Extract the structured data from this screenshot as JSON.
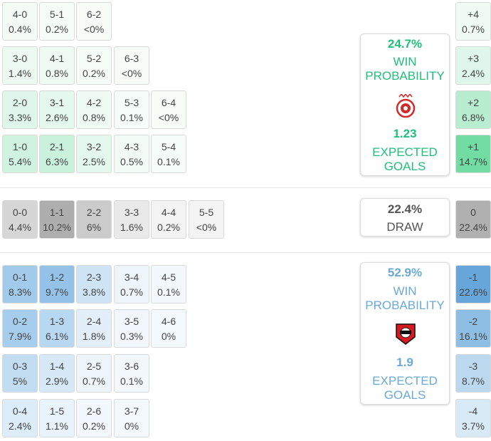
{
  "colors": {
    "home_accent": "#1fbf7a",
    "away_accent": "#6aa9d6",
    "draw_text": "#555555"
  },
  "home_rows": [
    [
      {
        "score": "4-0",
        "pct": "0.4%"
      },
      {
        "score": "5-1",
        "pct": "0.2%"
      },
      {
        "score": "6-2",
        "pct": "<0%"
      }
    ],
    [
      {
        "score": "3-0",
        "pct": "1.4%"
      },
      {
        "score": "4-1",
        "pct": "0.8%"
      },
      {
        "score": "5-2",
        "pct": "0.2%"
      },
      {
        "score": "6-3",
        "pct": "<0%"
      }
    ],
    [
      {
        "score": "2-0",
        "pct": "3.3%"
      },
      {
        "score": "3-1",
        "pct": "2.6%"
      },
      {
        "score": "4-2",
        "pct": "0.8%"
      },
      {
        "score": "5-3",
        "pct": "0.1%"
      },
      {
        "score": "6-4",
        "pct": "<0%"
      }
    ],
    [
      {
        "score": "1-0",
        "pct": "5.4%"
      },
      {
        "score": "2-1",
        "pct": "6.3%"
      },
      {
        "score": "3-2",
        "pct": "2.5%"
      },
      {
        "score": "4-3",
        "pct": "0.5%"
      },
      {
        "score": "5-4",
        "pct": "0.1%"
      }
    ]
  ],
  "draw_row": [
    {
      "score": "0-0",
      "pct": "4.4%"
    },
    {
      "score": "1-1",
      "pct": "10.2%"
    },
    {
      "score": "2-2",
      "pct": "6%"
    },
    {
      "score": "3-3",
      "pct": "1.6%"
    },
    {
      "score": "4-4",
      "pct": "0.2%"
    },
    {
      "score": "5-5",
      "pct": "<0%"
    }
  ],
  "away_rows": [
    [
      {
        "score": "0-1",
        "pct": "8.3%"
      },
      {
        "score": "1-2",
        "pct": "9.7%"
      },
      {
        "score": "2-3",
        "pct": "3.8%"
      },
      {
        "score": "3-4",
        "pct": "0.7%"
      },
      {
        "score": "4-5",
        "pct": "0.1%"
      }
    ],
    [
      {
        "score": "0-2",
        "pct": "7.9%"
      },
      {
        "score": "1-3",
        "pct": "6.1%"
      },
      {
        "score": "2-4",
        "pct": "1.8%"
      },
      {
        "score": "3-5",
        "pct": "0.3%"
      },
      {
        "score": "4-6",
        "pct": "0%"
      }
    ],
    [
      {
        "score": "0-3",
        "pct": "5%"
      },
      {
        "score": "1-4",
        "pct": "2.9%"
      },
      {
        "score": "2-5",
        "pct": "0.7%"
      },
      {
        "score": "3-6",
        "pct": "0.1%"
      }
    ],
    [
      {
        "score": "0-4",
        "pct": "2.4%"
      },
      {
        "score": "1-5",
        "pct": "1.1%"
      },
      {
        "score": "2-6",
        "pct": "0.2%"
      },
      {
        "score": "3-7",
        "pct": "0%"
      }
    ]
  ],
  "home_card": {
    "win_pct": "24.7%",
    "win_label_line1": "WIN",
    "win_label_line2": "PROBABILITY",
    "xg": "1.23",
    "xg_label_line1": "EXPECTED",
    "xg_label_line2": "GOALS",
    "crest_icon": "olympiacos-crest-icon"
  },
  "draw_card": {
    "pct": "22.4%",
    "label": "DRAW"
  },
  "away_card": {
    "win_pct": "52.9%",
    "win_label_line1": "WIN",
    "win_label_line2": "PROBABILITY",
    "xg": "1.9",
    "xg_label_line1": "EXPECTED",
    "xg_label_line2": "GOALS",
    "crest_icon": "leverkusen-crest-icon"
  },
  "goal_diff_home": [
    {
      "diff": "+4",
      "pct": "0.7%"
    },
    {
      "diff": "+3",
      "pct": "2.4%"
    },
    {
      "diff": "+2",
      "pct": "6.8%"
    },
    {
      "diff": "+1",
      "pct": "14.7%"
    }
  ],
  "goal_diff_draw": {
    "diff": "0",
    "pct": "22.4%"
  },
  "goal_diff_away": [
    {
      "diff": "-1",
      "pct": "22.6%"
    },
    {
      "diff": "-2",
      "pct": "16.1%"
    },
    {
      "diff": "-3",
      "pct": "8.7%"
    },
    {
      "diff": "-4",
      "pct": "3.7%"
    }
  ]
}
